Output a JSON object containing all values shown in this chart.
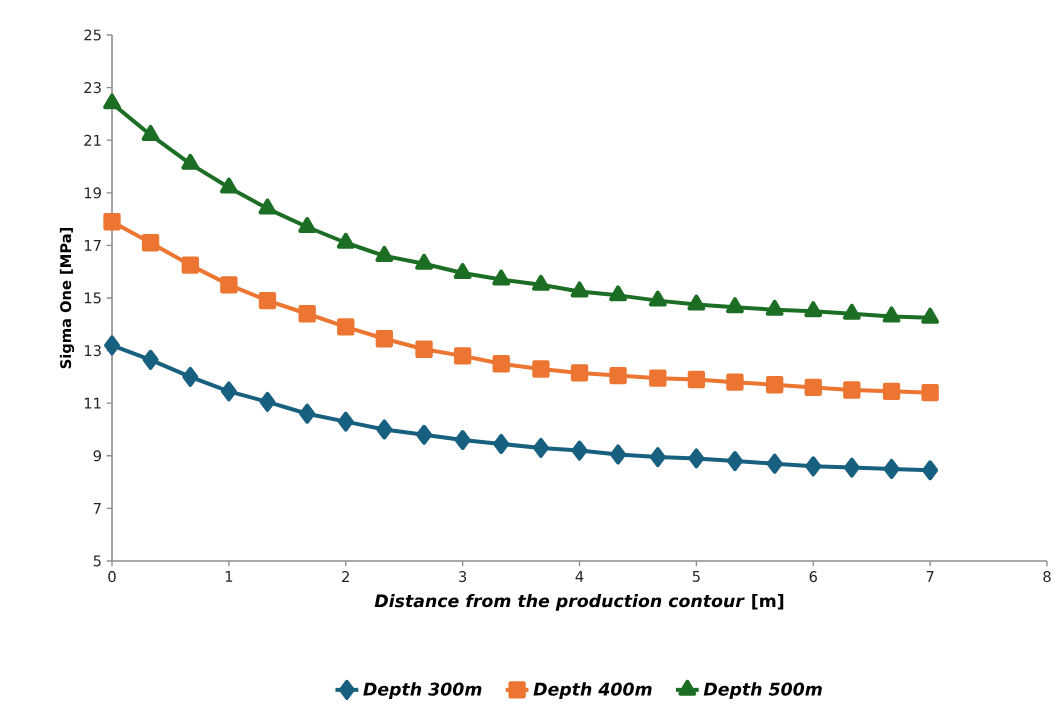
{
  "chart_data": {
    "type": "line",
    "xlabel": "*Distance from the production contour* [m]",
    "ylabel": "Sigma One [MPa]",
    "x": [
      0,
      0.33,
      0.67,
      1,
      1.33,
      1.67,
      2,
      2.33,
      2.67,
      3,
      3.33,
      3.67,
      4,
      4.33,
      4.67,
      5,
      5.33,
      5.67,
      6,
      6.33,
      6.67,
      7
    ],
    "series": [
      {
        "name": "Depth 300m",
        "color": "#17607f",
        "marker": "diamond",
        "values": [
          13.2,
          12.65,
          12.0,
          11.45,
          11.05,
          10.6,
          10.3,
          10.0,
          9.8,
          9.6,
          9.45,
          9.3,
          9.2,
          9.05,
          8.95,
          8.9,
          8.8,
          8.7,
          8.6,
          8.55,
          8.5,
          8.45
        ]
      },
      {
        "name": "Depth 400m",
        "color": "#ed7532",
        "marker": "square",
        "values": [
          17.9,
          17.1,
          16.25,
          15.5,
          14.9,
          14.4,
          13.9,
          13.45,
          13.05,
          12.8,
          12.5,
          12.3,
          12.15,
          12.05,
          11.95,
          11.9,
          11.8,
          11.7,
          11.6,
          11.5,
          11.45,
          11.4
        ]
      },
      {
        "name": "Depth 500m",
        "color": "#1b6e23",
        "marker": "triangle",
        "values": [
          22.4,
          21.2,
          20.1,
          19.2,
          18.4,
          17.7,
          17.1,
          16.6,
          16.3,
          15.95,
          15.7,
          15.5,
          15.25,
          15.1,
          14.9,
          14.75,
          14.65,
          14.55,
          14.5,
          14.4,
          14.3,
          14.25
        ]
      }
    ],
    "xlim": [
      0,
      8
    ],
    "xticks": [
      0,
      1,
      2,
      3,
      4,
      5,
      6,
      7,
      8
    ],
    "ylim": [
      5,
      25
    ],
    "yticks": [
      5,
      7,
      9,
      11,
      13,
      15,
      17,
      19,
      21,
      23,
      25
    ],
    "grid": false,
    "legend": "bottom",
    "line_style": "solid"
  }
}
